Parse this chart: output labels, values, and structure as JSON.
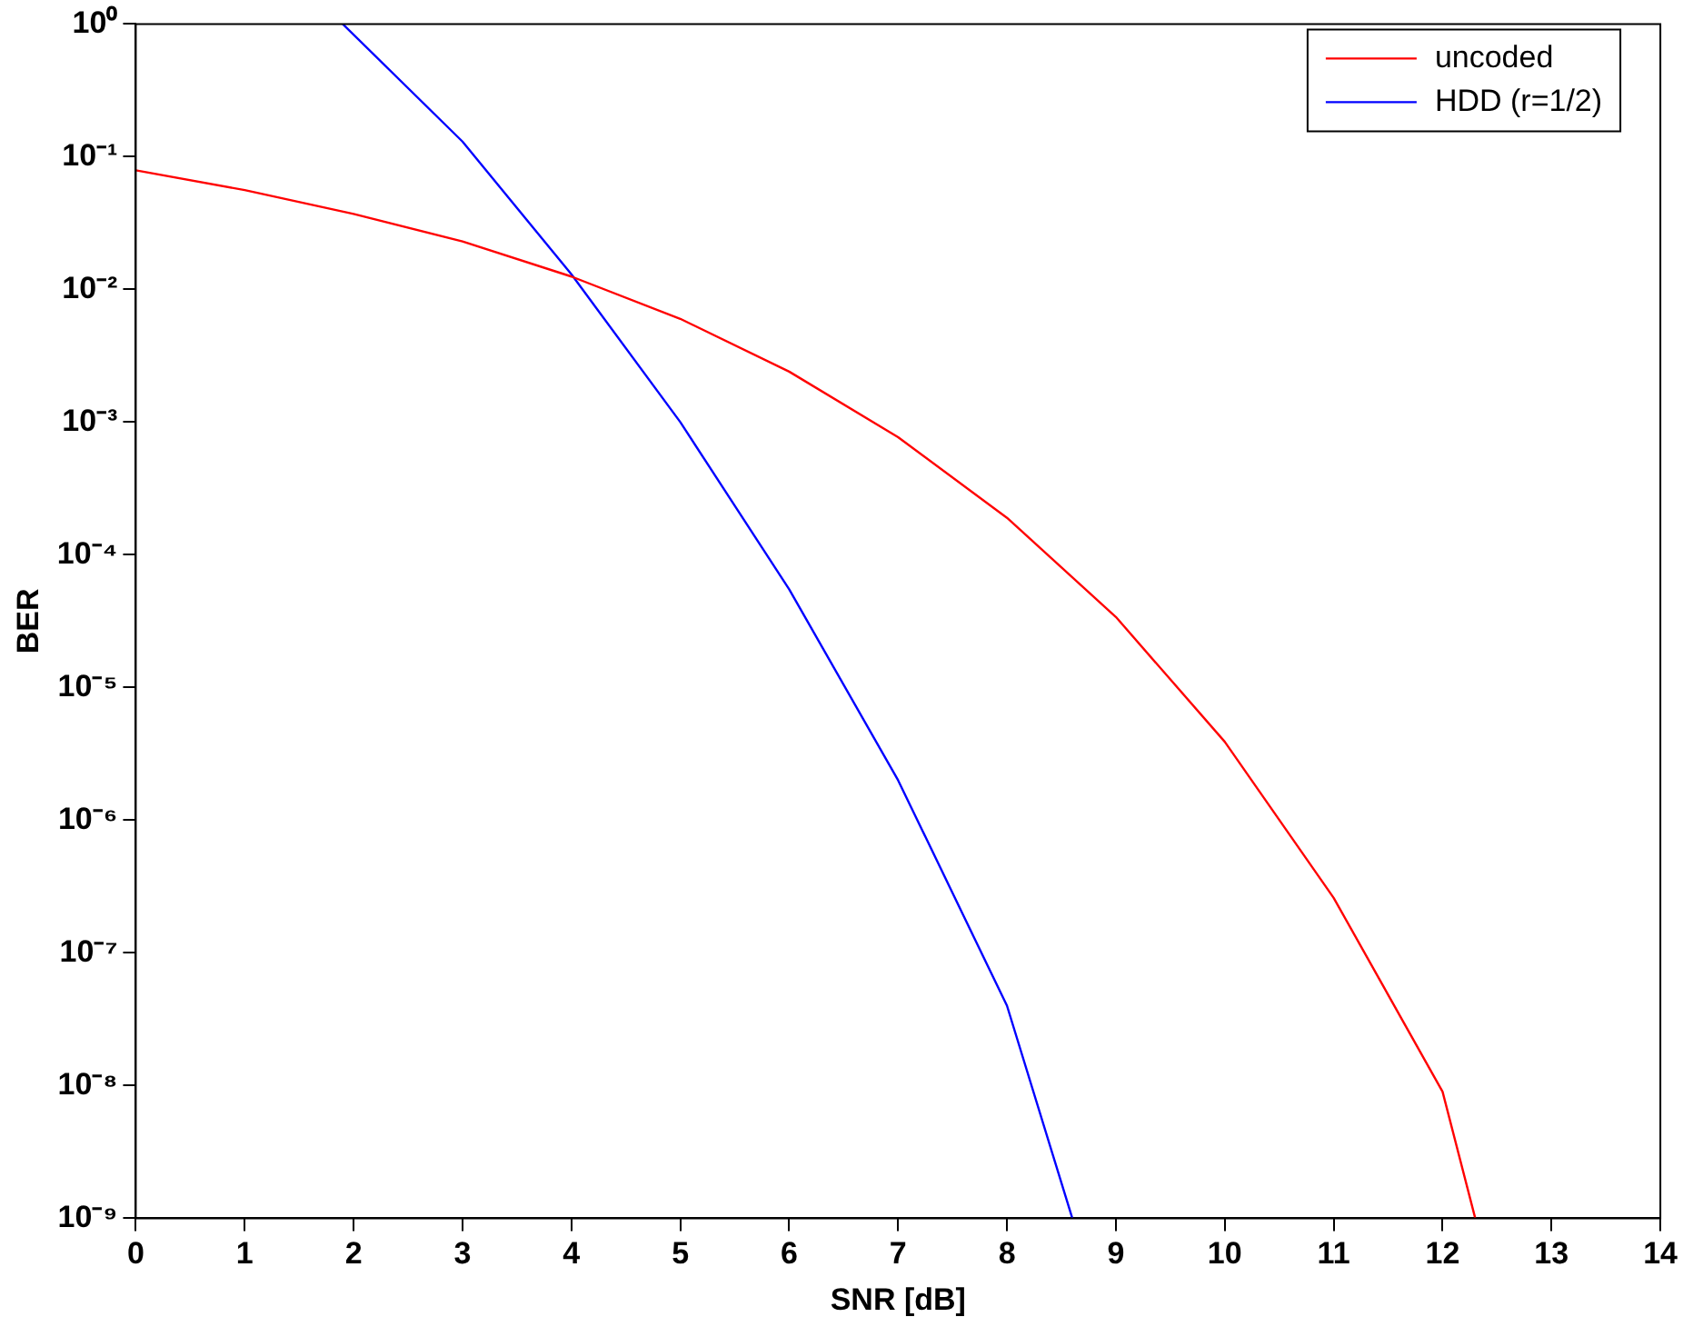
{
  "chart_data": {
    "type": "line",
    "xlabel": "SNR [dB]",
    "ylabel": "BER",
    "log": "y",
    "grid": false,
    "legend": "top right",
    "marker": "none",
    "line_style": "solid",
    "xlim": [
      0,
      14
    ],
    "xticks": [
      0,
      1,
      2,
      3,
      4,
      5,
      6,
      7,
      8,
      9,
      10,
      11,
      12,
      13,
      14
    ],
    "ylim": [
      1e-09,
      1
    ],
    "yticks": [
      {
        "value": 1e-09,
        "label": "10⁻⁹"
      },
      {
        "value": 1e-08,
        "label": "10⁻⁸"
      },
      {
        "value": 1e-07,
        "label": "10⁻⁷"
      },
      {
        "value": 1e-06,
        "label": "10⁻⁶"
      },
      {
        "value": 1e-05,
        "label": "10⁻⁵"
      },
      {
        "value": 0.0001,
        "label": "10⁻⁴"
      },
      {
        "value": 0.001,
        "label": "10⁻³"
      },
      {
        "value": 0.01,
        "label": "10⁻²"
      },
      {
        "value": 0.1,
        "label": "10⁻¹"
      },
      {
        "value": 1,
        "label": "10⁰"
      }
    ],
    "series": [
      {
        "name": "uncoded",
        "color": "#ff0000",
        "x": [
          0,
          1,
          2,
          3,
          4,
          5,
          6,
          7,
          8,
          9,
          10,
          11,
          12,
          12.3
        ],
        "values": [
          0.079,
          0.056,
          0.037,
          0.023,
          0.0125,
          0.006,
          0.0024,
          0.00077,
          0.00019,
          3.4e-05,
          3.9e-06,
          2.6e-07,
          9e-09,
          1e-09
        ]
      },
      {
        "name": "HDD (r=1/2)",
        "color": "#0000ff",
        "x": [
          1.9,
          3,
          4,
          5,
          6,
          7,
          8,
          8.6
        ],
        "values": [
          1,
          0.13,
          0.013,
          0.001,
          5.5e-05,
          2e-06,
          4e-08,
          1e-09
        ]
      }
    ]
  }
}
